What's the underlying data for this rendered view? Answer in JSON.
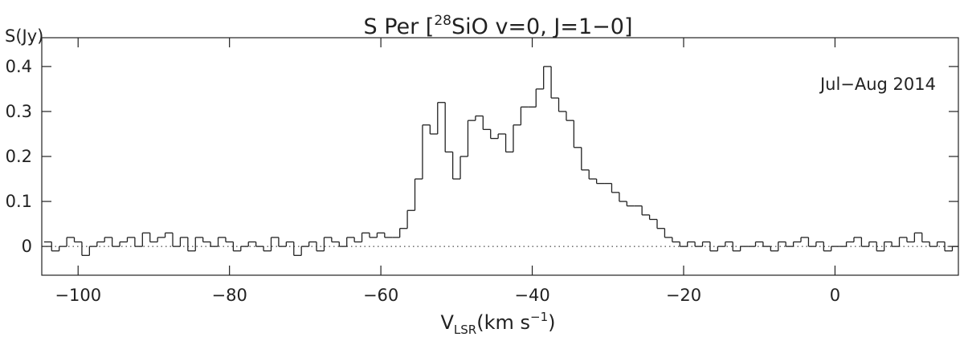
{
  "chart_data": {
    "type": "step",
    "title": {
      "prefix": "S Per [",
      "sup": "28",
      "suffix": "SiO v=0, J=1−0]"
    },
    "ylabel": "S(Jy)",
    "xlabel": {
      "main": "V",
      "sub": "LSR",
      "mid": "(km s",
      "sup": "−1",
      "end": ")"
    },
    "annotation": "Jul−Aug 2014",
    "color": "#222222",
    "baseline": 0,
    "xlim": [
      -104.8,
      16.3
    ],
    "ylim": [
      -0.064,
      0.464
    ],
    "xticks": [
      {
        "value": -100,
        "label": "−100"
      },
      {
        "value": -80,
        "label": "−80"
      },
      {
        "value": -60,
        "label": "−60"
      },
      {
        "value": -40,
        "label": "−40"
      },
      {
        "value": -20,
        "label": "−20"
      },
      0
    ],
    "yticks": [
      0,
      0.1,
      0.2,
      0.3,
      0.4
    ],
    "x": [
      -104,
      -103,
      -102,
      -101,
      -100,
      -99,
      -98,
      -97,
      -96,
      -95,
      -94,
      -93,
      -92,
      -91,
      -90,
      -89,
      -88,
      -87,
      -86,
      -85,
      -84,
      -83,
      -82,
      -81,
      -80,
      -79,
      -78,
      -77,
      -76,
      -75,
      -74,
      -73,
      -72,
      -71,
      -70,
      -69,
      -68,
      -67,
      -66,
      -65,
      -64,
      -63,
      -62,
      -61,
      -60,
      -59,
      -58,
      -57,
      -56,
      -55,
      -54,
      -53,
      -52,
      -51,
      -50,
      -49,
      -48,
      -47,
      -46,
      -45,
      -44,
      -43,
      -42,
      -41,
      -40,
      -39,
      -38,
      -37,
      -36,
      -35,
      -34,
      -33,
      -32,
      -31,
      -30,
      -29,
      -28,
      -27,
      -26,
      -25,
      -24,
      -23,
      -22,
      -21,
      -20,
      -19,
      -18,
      -17,
      -16,
      -15,
      -14,
      -13,
      -12,
      -11,
      -10,
      -9,
      -8,
      -7,
      -6,
      -5,
      -4,
      -3,
      -2,
      -1,
      0,
      1,
      2,
      3,
      4,
      5,
      6,
      7,
      8,
      9,
      10,
      11,
      12,
      13,
      14,
      15,
      16
    ],
    "values": [
      0.01,
      -0.01,
      0.0,
      0.02,
      0.01,
      -0.02,
      0.0,
      0.01,
      0.02,
      0.0,
      0.01,
      0.02,
      0.0,
      0.03,
      0.01,
      0.02,
      0.03,
      0.0,
      0.02,
      -0.01,
      0.02,
      0.01,
      0.0,
      0.02,
      0.01,
      -0.01,
      0.0,
      0.01,
      0.0,
      -0.01,
      0.02,
      0.0,
      0.01,
      -0.02,
      0.0,
      0.01,
      -0.01,
      0.02,
      0.01,
      0.0,
      0.02,
      0.01,
      0.03,
      0.02,
      0.03,
      0.02,
      0.02,
      0.04,
      0.08,
      0.15,
      0.27,
      0.25,
      0.32,
      0.21,
      0.15,
      0.2,
      0.28,
      0.29,
      0.26,
      0.24,
      0.25,
      0.21,
      0.27,
      0.31,
      0.31,
      0.35,
      0.4,
      0.33,
      0.3,
      0.28,
      0.22,
      0.17,
      0.15,
      0.14,
      0.14,
      0.12,
      0.1,
      0.09,
      0.09,
      0.07,
      0.06,
      0.04,
      0.02,
      0.01,
      0.0,
      0.01,
      0.0,
      0.01,
      -0.01,
      0.0,
      0.01,
      -0.01,
      0.0,
      0.0,
      0.01,
      0.0,
      -0.01,
      0.01,
      0.0,
      0.01,
      0.02,
      0.0,
      0.01,
      -0.01,
      0.0,
      0.0,
      0.01,
      0.02,
      0.0,
      0.01,
      -0.01,
      0.01,
      0.0,
      0.02,
      0.01,
      0.03,
      0.01,
      0.0,
      0.01,
      -0.01,
      0.0
    ]
  }
}
